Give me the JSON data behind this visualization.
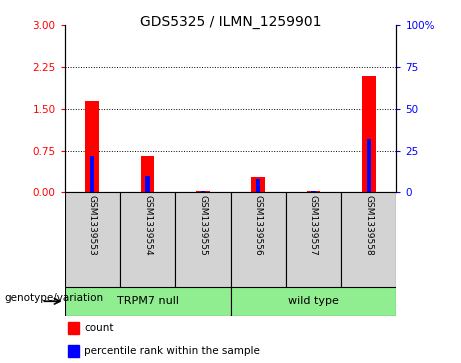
{
  "title": "GDS5325 / ILMN_1259901",
  "samples": [
    "GSM1339553",
    "GSM1339554",
    "GSM1339555",
    "GSM1339556",
    "GSM1339557",
    "GSM1339558"
  ],
  "counts": [
    1.65,
    0.65,
    0.02,
    0.28,
    0.02,
    2.1
  ],
  "percentiles_right": [
    22,
    10,
    1,
    8,
    1,
    32
  ],
  "ylim_left": [
    0,
    3
  ],
  "ylim_right": [
    0,
    100
  ],
  "yticks_left": [
    0,
    0.75,
    1.5,
    2.25,
    3
  ],
  "yticks_right": [
    0,
    25,
    50,
    75,
    100
  ],
  "left_color": "#FF0000",
  "right_color": "#0000FF",
  "red_bar_width": 0.25,
  "blue_bar_width": 0.08,
  "groups": [
    {
      "label": "TRPM7 null",
      "indices": [
        0,
        1,
        2
      ],
      "color": "#90EE90"
    },
    {
      "label": "wild type",
      "indices": [
        3,
        4,
        5
      ],
      "color": "#90EE90"
    }
  ],
  "group_label": "genotype/variation",
  "legend_items": [
    {
      "label": "count",
      "color": "#FF0000"
    },
    {
      "label": "percentile rank within the sample",
      "color": "#0000FF"
    }
  ],
  "bg_color": "#ffffff",
  "tick_bg": "#d3d3d3"
}
